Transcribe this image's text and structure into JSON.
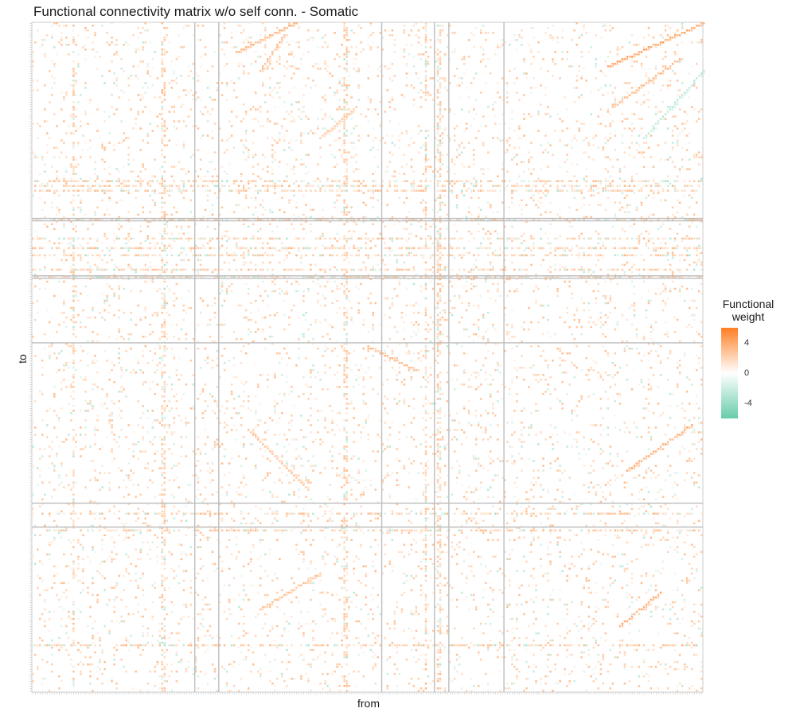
{
  "chart_data": {
    "type": "heatmap",
    "title": "Functional connectivity matrix w/o self conn. - Somatic",
    "xlabel": "from",
    "ylabel": "to",
    "legend": {
      "title_line1": "Functional",
      "title_line2": "weight",
      "placement": "right",
      "ticks": [
        4,
        0,
        -4
      ],
      "tick_labels": [
        "4",
        "0",
        "-4"
      ],
      "range": [
        -6,
        6
      ]
    },
    "colors": {
      "low": "#66cdaa",
      "mid": "#ffffff",
      "high": "#ff7f24",
      "separator": "#bebebe",
      "panel_border": "#cccccc"
    },
    "grid": false,
    "n_nodes": 280,
    "group_boundaries_from": [
      68,
      78,
      146,
      168,
      174,
      197
    ],
    "group_boundaries_to": [
      82,
      83,
      106,
      107,
      134,
      201,
      211
    ],
    "diagonal_bands": [
      {
        "from": [
          85,
          110
        ],
        "to": [
          12,
          0
        ],
        "weight": 3.5
      },
      {
        "from": [
          95,
          105
        ],
        "to": [
          20,
          5
        ],
        "weight": 3.0
      },
      {
        "from": [
          240,
          280
        ],
        "to": [
          18,
          0
        ],
        "weight": 4.0
      },
      {
        "from": [
          242,
          270
        ],
        "to": [
          35,
          15
        ],
        "weight": 3.2
      },
      {
        "from": [
          255,
          280
        ],
        "to": [
          48,
          20
        ],
        "weight": -2.5
      },
      {
        "from": [
          248,
          275
        ],
        "to": [
          187,
          168
        ],
        "weight": 3.5
      },
      {
        "from": [
          245,
          262
        ],
        "to": [
          252,
          238
        ],
        "weight": 4.0
      },
      {
        "from": [
          140,
          160
        ],
        "to": [
          135,
          145
        ],
        "weight": 3.0
      },
      {
        "from": [
          90,
          115
        ],
        "to": [
          170,
          195
        ],
        "weight": 2.8
      },
      {
        "from": [
          95,
          120
        ],
        "to": [
          245,
          230
        ],
        "weight": 2.8
      },
      {
        "from": [
          120,
          135
        ],
        "to": [
          48,
          35
        ],
        "weight": 2.5
      }
    ],
    "hot_rows": [
      66,
      68,
      70,
      82,
      90,
      94,
      97,
      103,
      106,
      205,
      212,
      260
    ],
    "hot_cols": [
      54,
      55,
      17,
      169,
      170,
      164,
      130,
      131
    ]
  }
}
